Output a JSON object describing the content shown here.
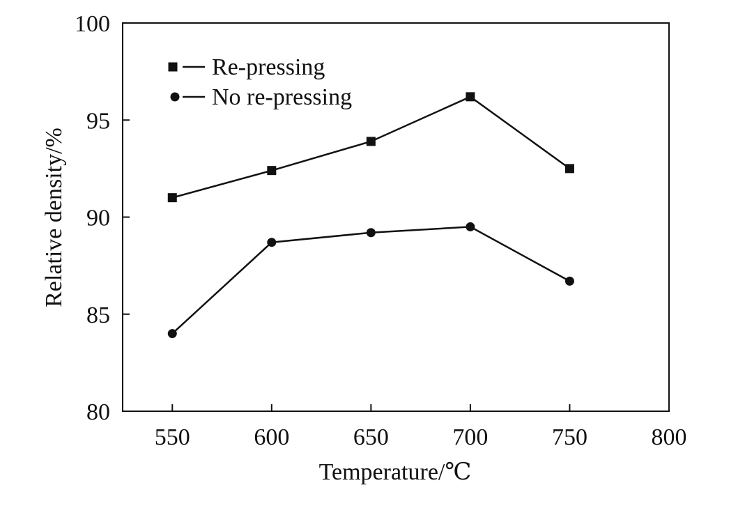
{
  "chart_data": {
    "type": "line",
    "title": "",
    "xlabel": "Temperature/℃",
    "ylabel": "Relative density/%",
    "xlim": [
      525,
      800
    ],
    "ylim": [
      80,
      100
    ],
    "xticks": [
      550,
      600,
      650,
      700,
      750,
      800
    ],
    "yticks": [
      80,
      85,
      90,
      95,
      100
    ],
    "grid": false,
    "legend_position": "top-left",
    "x": [
      550,
      600,
      650,
      700,
      750
    ],
    "series": [
      {
        "name": "Re-pressing",
        "marker": "square",
        "color": "#111111",
        "values": [
          91.0,
          92.4,
          93.9,
          96.2,
          92.5
        ]
      },
      {
        "name": "No re-pressing",
        "marker": "circle",
        "color": "#111111",
        "values": [
          84.0,
          88.7,
          89.2,
          89.5,
          86.7
        ]
      }
    ]
  }
}
